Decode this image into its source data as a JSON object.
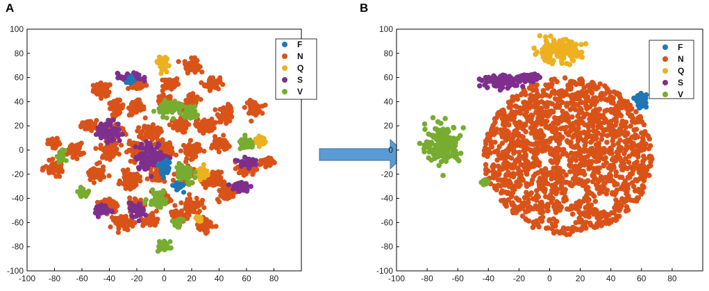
{
  "colors": {
    "F": "#1f77b4",
    "N": "#d95319",
    "Q": "#edb120",
    "S": "#7e2f8e",
    "V": "#77ac30",
    "arrow": "#5b9bd5"
  },
  "chart_data": [
    {
      "panel": "A",
      "type": "scatter",
      "title": "",
      "xlabel": "",
      "ylabel": "",
      "xlim": [
        -100,
        100
      ],
      "ylim": [
        -100,
        100
      ],
      "xticks": [
        -100,
        -80,
        -60,
        -40,
        -20,
        0,
        20,
        40,
        60,
        80
      ],
      "yticks": [
        100,
        80,
        60,
        40,
        20,
        0,
        -20,
        -40,
        -60,
        -80,
        -100
      ],
      "grid": false,
      "legend_position": "top-right",
      "legend": [
        "F",
        "N",
        "Q",
        "S",
        "V"
      ],
      "series": [
        {
          "name": "N",
          "clusters": [
            [
              -45,
              50,
              6,
              5
            ],
            [
              -20,
              55,
              6,
              5
            ],
            [
              5,
              55,
              5,
              5
            ],
            [
              20,
              70,
              5,
              5
            ],
            [
              35,
              55,
              5,
              5
            ],
            [
              -35,
              35,
              5,
              5
            ],
            [
              -20,
              35,
              5,
              6
            ],
            [
              0,
              40,
              5,
              5
            ],
            [
              20,
              40,
              5,
              5
            ],
            [
              45,
              30,
              5,
              6
            ],
            [
              65,
              35,
              5,
              5
            ],
            [
              -55,
              20,
              5,
              4
            ],
            [
              -35,
              15,
              6,
              6
            ],
            [
              -10,
              15,
              6,
              6
            ],
            [
              10,
              20,
              6,
              5
            ],
            [
              30,
              20,
              6,
              5
            ],
            [
              -80,
              5,
              4,
              4
            ],
            [
              -65,
              0,
              5,
              5
            ],
            [
              -40,
              0,
              6,
              6
            ],
            [
              -20,
              0,
              6,
              6
            ],
            [
              0,
              0,
              6,
              7
            ],
            [
              20,
              0,
              6,
              6
            ],
            [
              40,
              5,
              5,
              5
            ],
            [
              -80,
              -15,
              6,
              5
            ],
            [
              -50,
              -20,
              6,
              6
            ],
            [
              -25,
              -25,
              6,
              6
            ],
            [
              -5,
              -20,
              5,
              6
            ],
            [
              15,
              -20,
              6,
              6
            ],
            [
              35,
              -25,
              6,
              6
            ],
            [
              60,
              -15,
              6,
              5
            ],
            [
              75,
              -10,
              5,
              3
            ],
            [
              -40,
              -45,
              6,
              6
            ],
            [
              -20,
              -45,
              5,
              5
            ],
            [
              0,
              -40,
              5,
              5
            ],
            [
              20,
              -45,
              6,
              6
            ],
            [
              45,
              -35,
              6,
              6
            ],
            [
              -30,
              -60,
              6,
              5
            ],
            [
              -10,
              -58,
              5,
              5
            ],
            [
              10,
              -55,
              5,
              5
            ],
            [
              30,
              -62,
              5,
              5
            ]
          ]
        },
        {
          "name": "Q",
          "clusters": [
            [
              -2,
              73,
              3,
              6
            ],
            [
              70,
              8,
              4,
              4
            ],
            [
              28,
              -20,
              4,
              4
            ],
            [
              25,
              -57,
              2,
              2
            ]
          ]
        },
        {
          "name": "S",
          "clusters": [
            [
              -25,
              60,
              8,
              3
            ],
            [
              -40,
              15,
              8,
              8
            ],
            [
              -10,
              -5,
              10,
              10
            ],
            [
              60,
              -10,
              5,
              3
            ],
            [
              55,
              -30,
              6,
              4
            ],
            [
              -45,
              -50,
              5,
              4
            ],
            [
              -20,
              -50,
              5,
              5
            ]
          ]
        },
        {
          "name": "V",
          "clusters": [
            [
              5,
              35,
              8,
              6
            ],
            [
              20,
              30,
              5,
              4
            ],
            [
              60,
              5,
              5,
              4
            ],
            [
              15,
              -20,
              6,
              8
            ],
            [
              -5,
              -40,
              6,
              6
            ],
            [
              -60,
              -35,
              3,
              3
            ],
            [
              -75,
              -5,
              2,
              4
            ],
            [
              0,
              -80,
              4,
              4
            ],
            [
              10,
              -60,
              3,
              3
            ]
          ]
        },
        {
          "name": "F",
          "clusters": [
            [
              -25,
              58,
              2,
              2
            ],
            [
              0,
              -15,
              4,
              6
            ],
            [
              10,
              -30,
              3,
              3
            ]
          ]
        }
      ]
    },
    {
      "panel": "B",
      "type": "scatter",
      "title": "",
      "xlabel": "",
      "ylabel": "",
      "xlim": [
        -100,
        100
      ],
      "ylim": [
        -100,
        100
      ],
      "xticks": [
        -100,
        -80,
        -60,
        -40,
        -20,
        0,
        20,
        40,
        60,
        80
      ],
      "yticks": [
        100,
        80,
        60,
        40,
        20,
        0,
        -20,
        -40,
        -60,
        -80,
        -100
      ],
      "grid": false,
      "legend_position": "top-right",
      "legend": [
        "F",
        "N",
        "Q",
        "S",
        "V"
      ],
      "series": [
        {
          "name": "N",
          "region": {
            "cx": 12,
            "cy": -5,
            "rx": 55,
            "ry": 65,
            "top": 62,
            "bottom": -72,
            "left": -45,
            "right": 68
          }
        },
        {
          "name": "Q",
          "clusters": [
            [
              5,
              82,
              14,
              8
            ]
          ]
        },
        {
          "name": "S",
          "clusters": [
            [
              -30,
              57,
              12,
              4
            ],
            [
              -12,
              60,
              6,
              3
            ]
          ]
        },
        {
          "name": "V",
          "clusters": [
            [
              -70,
              5,
              10,
              14
            ],
            [
              -42,
              -27,
              2,
              2
            ]
          ]
        },
        {
          "name": "F",
          "clusters": [
            [
              60,
              41,
              3,
              4
            ]
          ]
        }
      ]
    }
  ]
}
